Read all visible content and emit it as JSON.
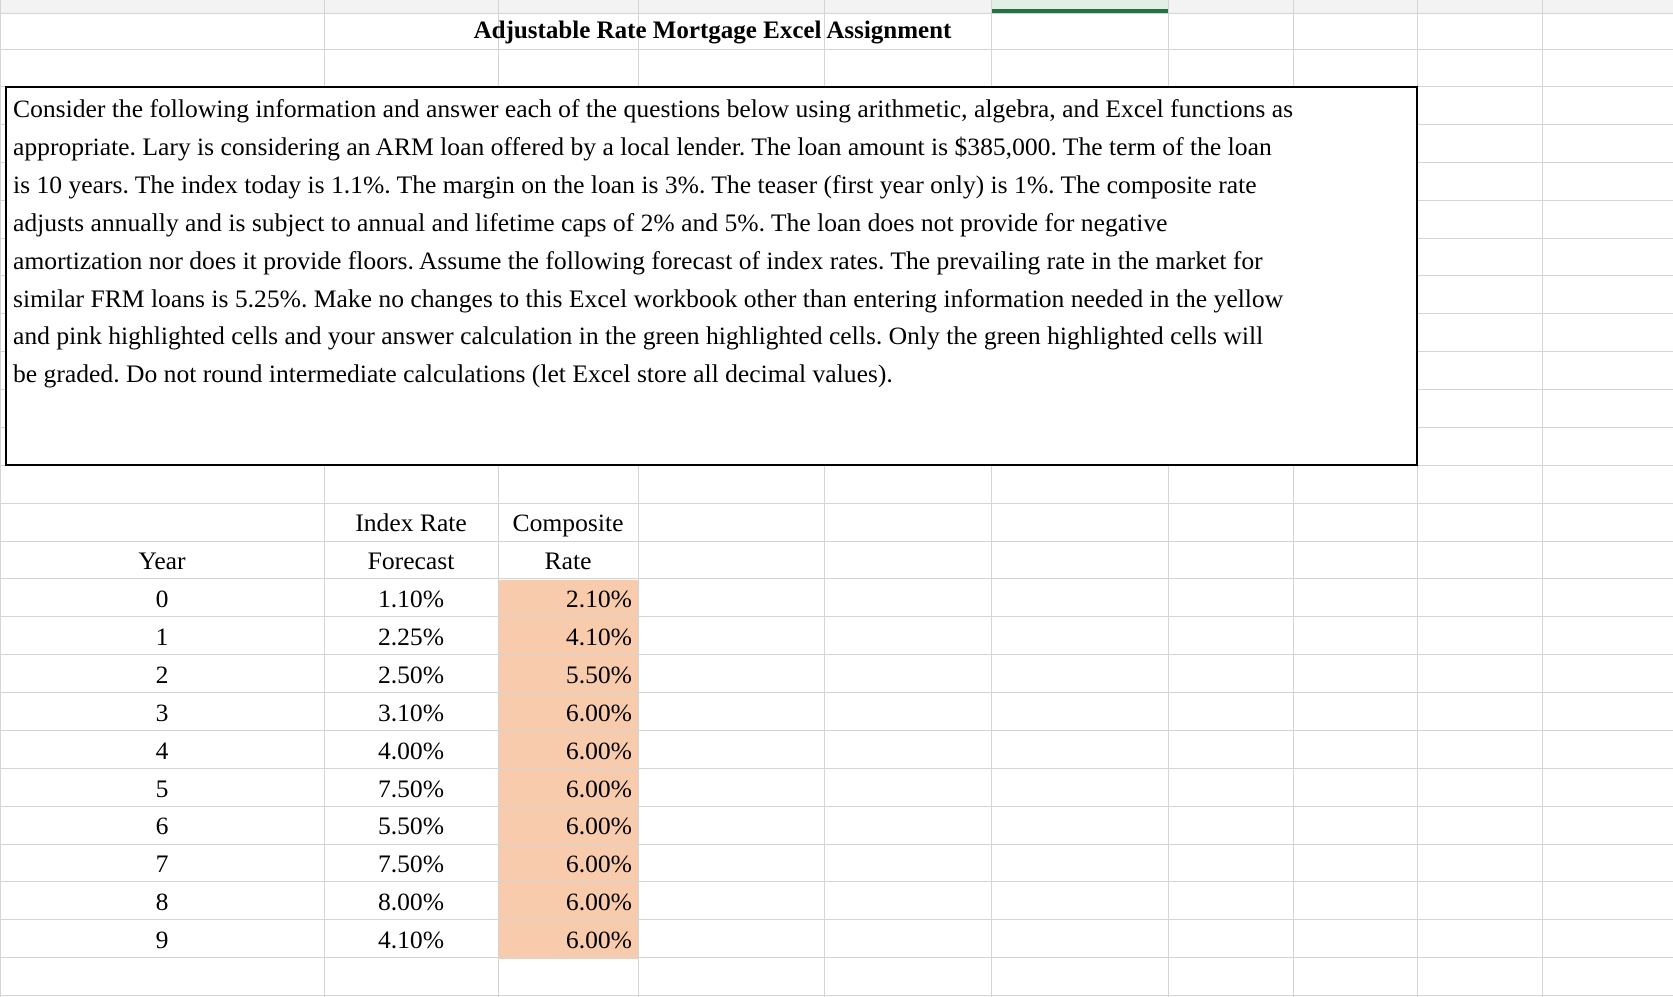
{
  "sheet": {
    "title": "Adjustable Rate Mortgage Excel Assignment",
    "paragraph_lines": [
      "Consider the following information and answer each of the questions below using arithmetic, algebra, and Excel functions as",
      "appropriate.  Lary is considering an ARM loan offered by a local lender.  The loan amount is $385,000.  The term of the loan",
      "is 10 years.  The index today is 1.1%.  The margin on the loan is 3%.  The teaser (first year only) is 1%.  The composite rate",
      "adjusts annually and is subject to annual and lifetime caps of 2% and 5%.  The loan does not provide for negative",
      "amortization nor does it provide floors.  Assume the following forecast of index rates.  The prevailing rate in the market for",
      "similar FRM loans is 5.25%.  Make no changes to this Excel workbook other than entering information needed in the yellow",
      "and pink highlighted cells and your answer calculation in the green highlighted cells.  Only the green highlighted cells will",
      "be graded.  Do not round intermediate calculations (let Excel store all decimal values)."
    ],
    "table": {
      "headers": [
        "Year",
        "Index Rate Forecast",
        "Composite Rate"
      ],
      "rows": [
        [
          0,
          "1.10%",
          "2.10%"
        ],
        [
          1,
          "2.25%",
          "4.10%"
        ],
        [
          2,
          "2.50%",
          "5.50%"
        ],
        [
          3,
          "3.10%",
          "6.00%"
        ],
        [
          4,
          "4.00%",
          "6.00%"
        ],
        [
          5,
          "7.50%",
          "6.00%"
        ],
        [
          6,
          "5.50%",
          "6.00%"
        ],
        [
          7,
          "7.50%",
          "6.00%"
        ],
        [
          8,
          "8.00%",
          "6.00%"
        ],
        [
          9,
          "4.10%",
          "6.00%"
        ]
      ]
    }
  }
}
